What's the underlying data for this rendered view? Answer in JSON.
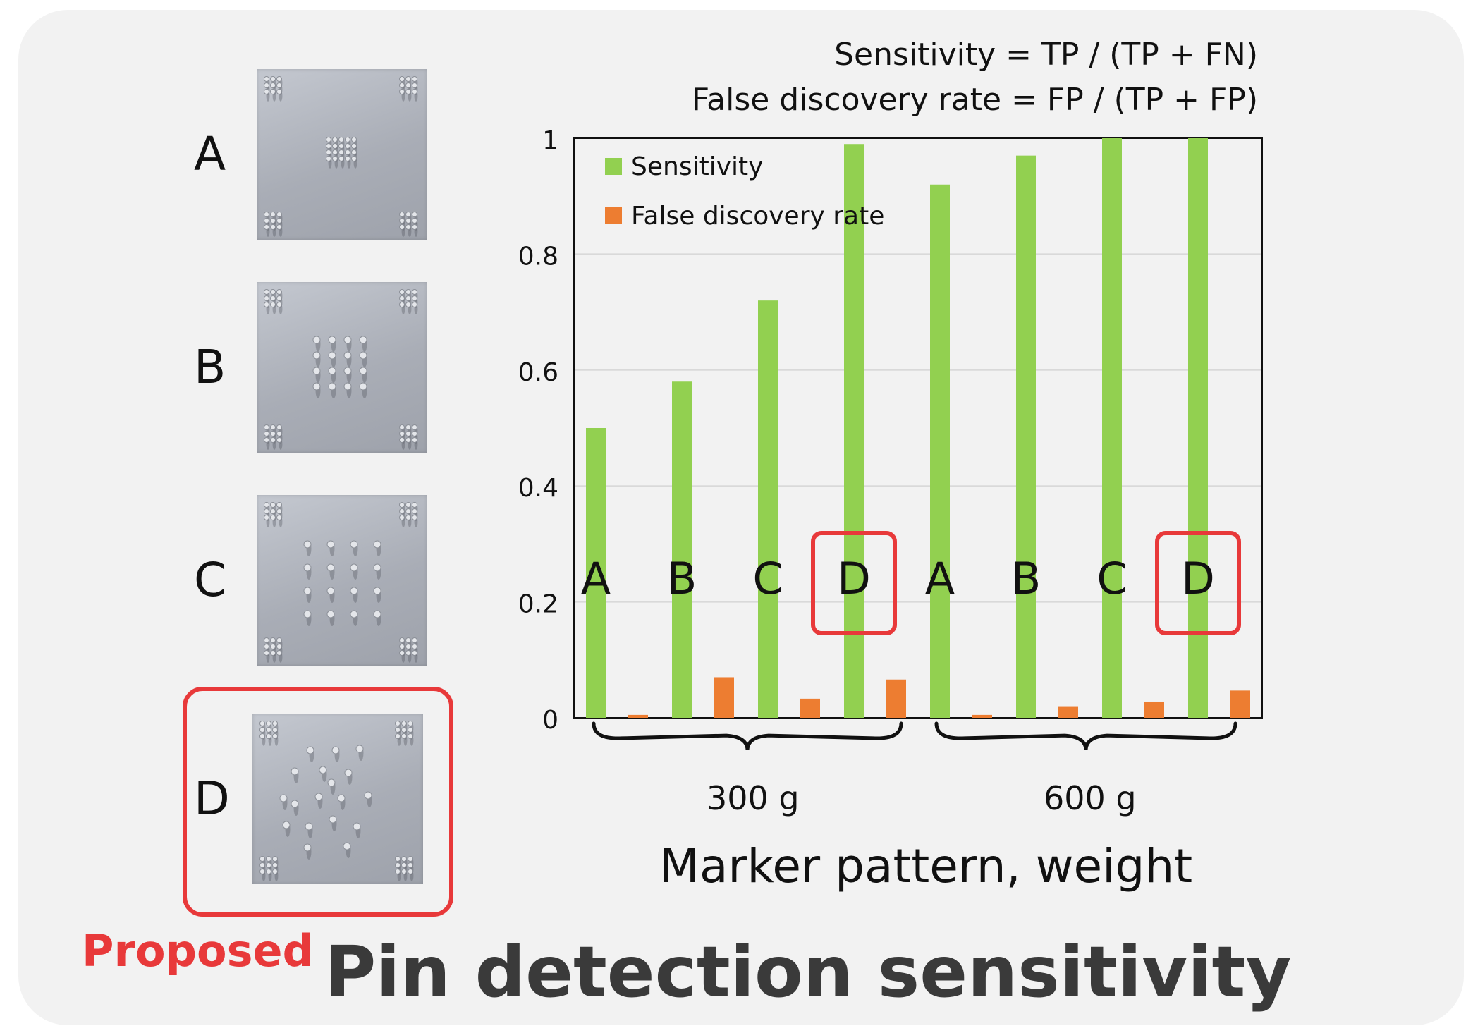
{
  "patterns": [
    {
      "letter": "A"
    },
    {
      "letter": "B"
    },
    {
      "letter": "C"
    },
    {
      "letter": "D"
    }
  ],
  "proposed_label": "Proposed",
  "main_title": "Pin detection sensitivity",
  "formulas": {
    "sensitivity": "Sensitivity = TP / (TP + FN)",
    "fdr": "False discovery rate = FP / (TP + FP)"
  },
  "colors": {
    "sensitivity": "#92d050",
    "fdr": "#ed7d31",
    "highlight": "#e8393a"
  },
  "chart_data": {
    "type": "bar",
    "categories": [
      "A",
      "B",
      "C",
      "D",
      "A",
      "B",
      "C",
      "D"
    ],
    "groups": [
      {
        "label": "300 g",
        "categories": [
          "A",
          "B",
          "C",
          "D"
        ]
      },
      {
        "label": "600 g",
        "categories": [
          "A",
          "B",
          "C",
          "D"
        ]
      }
    ],
    "highlighted": [
      "D"
    ],
    "series": [
      {
        "name": "Sensitivity",
        "values": [
          0.5,
          0.58,
          0.72,
          0.99,
          0.92,
          0.97,
          1.0,
          1.0
        ]
      },
      {
        "name": "False discovery rate",
        "values": [
          0.005,
          0.07,
          0.033,
          0.066,
          0.005,
          0.02,
          0.028,
          0.047
        ]
      }
    ],
    "xlabel": "Marker pattern, weight",
    "ylabel": "",
    "ylim": [
      0,
      1
    ],
    "yticks": [
      "0",
      "0.2",
      "0.4",
      "0.6",
      "0.8",
      "1"
    ],
    "grid": true,
    "legend": "top-left"
  }
}
